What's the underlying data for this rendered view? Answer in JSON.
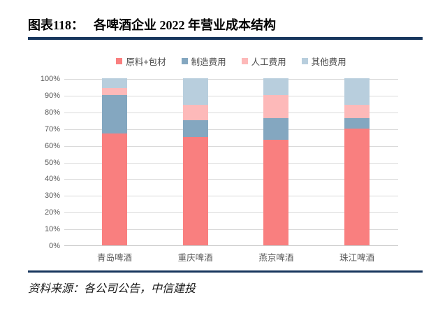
{
  "header": {
    "label": "图表118：",
    "title": "各啤酒企业 2022 年营业成本结构"
  },
  "footer": {
    "source": "资料来源：各公司公告，中信建投"
  },
  "colors": {
    "rule": "#17365d",
    "gridline": "#d9d9d9",
    "axis_text": "#595959",
    "series": {
      "raw_materials": "#f97f7f",
      "manufacturing": "#84a7c0",
      "labor": "#fdb9b9",
      "other": "#b8cedd"
    }
  },
  "chart_data": {
    "type": "bar",
    "stacked": true,
    "title": "各啤酒企业 2022 年营业成本结构",
    "categories": [
      "青岛啤酒",
      "重庆啤酒",
      "燕京啤酒",
      "珠江啤酒"
    ],
    "series": [
      {
        "name": "原料+包材",
        "color": "#f97f7f",
        "values": [
          67,
          65,
          63,
          70
        ]
      },
      {
        "name": "制造费用",
        "color": "#84a7c0",
        "values": [
          23,
          10,
          13,
          6
        ]
      },
      {
        "name": "人工费用",
        "color": "#fdb9b9",
        "values": [
          4,
          9,
          14,
          8
        ]
      },
      {
        "name": "其他费用",
        "color": "#b8cedd",
        "values": [
          6,
          16,
          10,
          16
        ]
      }
    ],
    "ylim": [
      0,
      100
    ],
    "ytick_step": 10,
    "ytick_labels": [
      "0%",
      "10%",
      "20%",
      "30%",
      "40%",
      "50%",
      "60%",
      "70%",
      "80%",
      "90%",
      "100%"
    ],
    "legend_position": "top",
    "grid": true
  }
}
